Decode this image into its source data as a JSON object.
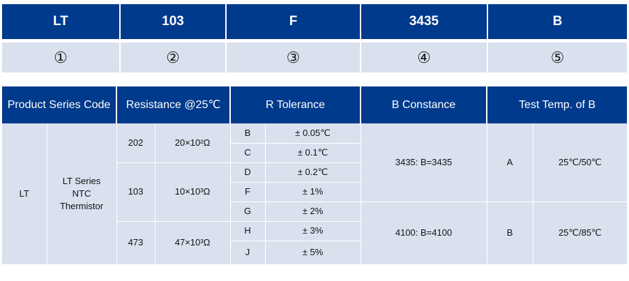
{
  "code": {
    "parts": [
      "LT",
      "103",
      "F",
      "3435",
      "B"
    ],
    "numbers": [
      "①",
      "②",
      "③",
      "④",
      "⑤"
    ]
  },
  "spec": {
    "headers": {
      "product": "Product Series Code",
      "resistance": "Resistance @25℃",
      "tolerance": "R Tolerance",
      "bconst": "B Constance",
      "testtemp": "Test Temp. of B"
    },
    "series_code": "LT",
    "series_desc": [
      "LT Series",
      "NTC",
      "Thermistor"
    ],
    "resistance": [
      {
        "code": "202",
        "value": "20×10²Ω"
      },
      {
        "code": "103",
        "value": "10×10³Ω"
      },
      {
        "code": "473",
        "value": "47×10³Ω"
      }
    ],
    "tolerance": [
      {
        "code": "B",
        "value": "± 0.05℃"
      },
      {
        "code": "C",
        "value": "± 0.1℃"
      },
      {
        "code": "D",
        "value": "± 0.2℃"
      },
      {
        "code": "F",
        "value": "± 1%"
      },
      {
        "code": "G",
        "value": "± 2%"
      },
      {
        "code": "H",
        "value": "± 3%"
      },
      {
        "code": "J",
        "value": "± 5%"
      }
    ],
    "bconst": [
      "3435: B=3435",
      "4100: B=4100"
    ],
    "testtemp": [
      {
        "code": "A",
        "value": "25℃/50℃"
      },
      {
        "code": "B",
        "value": "25℃/85℃"
      }
    ]
  }
}
